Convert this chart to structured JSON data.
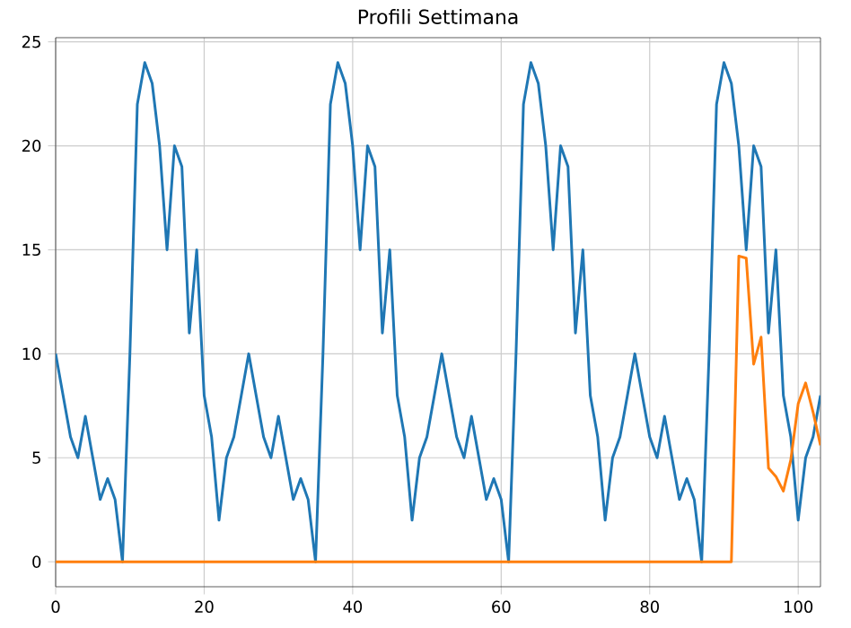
{
  "chart_data": {
    "type": "line",
    "title": "Profili Settimana",
    "x": [
      0,
      1,
      2,
      3,
      4,
      5,
      6,
      7,
      8,
      9,
      10,
      11,
      12,
      13,
      14,
      15,
      16,
      17,
      18,
      19,
      20,
      21,
      22,
      23,
      24,
      25,
      26,
      27,
      28,
      29,
      30,
      31,
      32,
      33,
      34,
      35,
      36,
      37,
      38,
      39,
      40,
      41,
      42,
      43,
      44,
      45,
      46,
      47,
      48,
      49,
      50,
      51,
      52,
      53,
      54,
      55,
      56,
      57,
      58,
      59,
      60,
      61,
      62,
      63,
      64,
      65,
      66,
      67,
      68,
      69,
      70,
      71,
      72,
      73,
      74,
      75,
      76,
      77,
      78,
      79,
      80,
      81,
      82,
      83,
      84,
      85,
      86,
      87,
      88,
      89,
      90,
      91,
      92,
      93,
      94,
      95,
      96,
      97,
      98,
      99,
      100,
      101,
      102,
      103
    ],
    "series": [
      {
        "color": "#1f77b4",
        "values": [
          10,
          8,
          6,
          5,
          7,
          5,
          3,
          4,
          3,
          0,
          10,
          22,
          24,
          23,
          20,
          15,
          20,
          19,
          11,
          15,
          8,
          6,
          2,
          5,
          6,
          8,
          10,
          8,
          6,
          5,
          7,
          5,
          3,
          4,
          3,
          0,
          10,
          22,
          24,
          23,
          20,
          15,
          20,
          19,
          11,
          15,
          8,
          6,
          2,
          5,
          6,
          8,
          10,
          8,
          6,
          5,
          7,
          5,
          3,
          4,
          3,
          0,
          10,
          22,
          24,
          23,
          20,
          15,
          20,
          19,
          11,
          15,
          8,
          6,
          2,
          5,
          6,
          8,
          10,
          8,
          6,
          5,
          7,
          5,
          3,
          4,
          3,
          0,
          10,
          22,
          24,
          23,
          20,
          15,
          20,
          19,
          11,
          15,
          8,
          6,
          2,
          5,
          6,
          8
        ]
      },
      {
        "color": "#ff7f0e",
        "values": [
          0,
          0,
          0,
          0,
          0,
          0,
          0,
          0,
          0,
          0,
          0,
          0,
          0,
          0,
          0,
          0,
          0,
          0,
          0,
          0,
          0,
          0,
          0,
          0,
          0,
          0,
          0,
          0,
          0,
          0,
          0,
          0,
          0,
          0,
          0,
          0,
          0,
          0,
          0,
          0,
          0,
          0,
          0,
          0,
          0,
          0,
          0,
          0,
          0,
          0,
          0,
          0,
          0,
          0,
          0,
          0,
          0,
          0,
          0,
          0,
          0,
          0,
          0,
          0,
          0,
          0,
          0,
          0,
          0,
          0,
          0,
          0,
          0,
          0,
          0,
          0,
          0,
          0,
          0,
          0,
          0,
          0,
          0,
          0,
          0,
          0,
          0,
          0,
          0,
          0,
          0,
          0,
          14.7,
          14.6,
          9.5,
          10.8,
          4.5,
          4.1,
          3.4,
          4.9,
          7.6,
          8.6,
          7.2,
          5.6
        ]
      }
    ],
    "xlim": [
      0,
      103
    ],
    "ylim": [
      -1.2,
      25.2
    ],
    "xticks": [
      0,
      20,
      40,
      60,
      80,
      100
    ],
    "yticks": [
      0,
      5,
      10,
      15,
      20,
      25
    ],
    "grid": true
  }
}
